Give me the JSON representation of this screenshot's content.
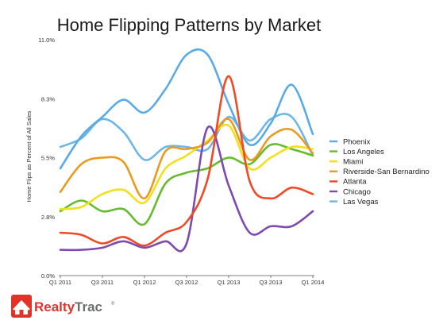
{
  "logo": {
    "word1": "Realty",
    "word2": "Trac",
    "reg": "®",
    "colors": {
      "red": "#e0332a",
      "gray": "#6d6e70"
    }
  },
  "chart_data": {
    "type": "line",
    "title": "Home Flipping Patterns by Market",
    "ylabel": "Home Flips as Percent of All Sales",
    "xlabel": "",
    "ylim": [
      0,
      11
    ],
    "y_ticks": [
      {
        "value": 0,
        "label": "0.0%"
      },
      {
        "value": 2.75,
        "label": "2.8%"
      },
      {
        "value": 5.5,
        "label": "5.5%"
      },
      {
        "value": 8.25,
        "label": "8.3%"
      },
      {
        "value": 11,
        "label": "11.0%"
      }
    ],
    "categories": [
      "Q1 2011",
      "Q2 2011",
      "Q3 2011",
      "Q4 2011",
      "Q1 2012",
      "Q2 2012",
      "Q3 2012",
      "Q4 2012",
      "Q1 2013",
      "Q2 2013",
      "Q3 2013",
      "Q4 2013",
      "Q1 2014"
    ],
    "x_tick_labels": [
      {
        "index": 0,
        "label": "Q1 2011"
      },
      {
        "index": 2,
        "label": "Q3 2011"
      },
      {
        "index": 4,
        "label": "Q1 2012"
      },
      {
        "index": 6,
        "label": "Q3 2012"
      },
      {
        "index": 8,
        "label": "Q1 2013"
      },
      {
        "index": 10,
        "label": "Q3 2013"
      },
      {
        "index": 12,
        "label": "Q1 2014"
      }
    ],
    "grid": false,
    "legend_position": "right",
    "series": [
      {
        "name": "Phoenix",
        "color": "#5aaae6",
        "values": [
          5.0,
          6.5,
          7.4,
          8.2,
          7.6,
          8.7,
          10.3,
          10.3,
          8.0,
          6.1,
          7.1,
          8.9,
          6.6
        ]
      },
      {
        "name": "Los Angeles",
        "color": "#66bb2e",
        "values": [
          3.0,
          3.5,
          3.0,
          3.1,
          2.4,
          4.3,
          4.8,
          5.0,
          5.5,
          5.2,
          6.1,
          5.9,
          5.6
        ]
      },
      {
        "name": "Miami",
        "color": "#f2e01c",
        "values": [
          3.1,
          3.2,
          3.8,
          4.0,
          3.4,
          5.0,
          5.6,
          6.3,
          7.0,
          5.0,
          5.5,
          6.0,
          5.9
        ]
      },
      {
        "name": "Riverside-San Bernardino",
        "color": "#e99a1f",
        "values": [
          3.9,
          5.2,
          5.5,
          5.3,
          3.6,
          5.8,
          5.9,
          6.2,
          7.3,
          5.4,
          6.5,
          6.8,
          5.7
        ]
      },
      {
        "name": "Atlanta",
        "color": "#ee4a25",
        "values": [
          2.0,
          1.9,
          1.5,
          1.8,
          1.4,
          2.0,
          2.5,
          4.5,
          9.3,
          4.4,
          3.6,
          4.1,
          3.8
        ]
      },
      {
        "name": "Chicago",
        "color": "#7f4ab0",
        "values": [
          1.2,
          1.2,
          1.3,
          1.6,
          1.3,
          1.6,
          1.5,
          6.9,
          4.2,
          2.0,
          2.3,
          2.3,
          3.0
        ]
      },
      {
        "name": "Las Vegas",
        "color": "#6db7e6",
        "values": [
          6.0,
          6.4,
          7.3,
          6.7,
          5.4,
          6.0,
          6.0,
          5.9,
          7.4,
          6.3,
          7.3,
          7.4,
          5.6
        ]
      }
    ]
  }
}
